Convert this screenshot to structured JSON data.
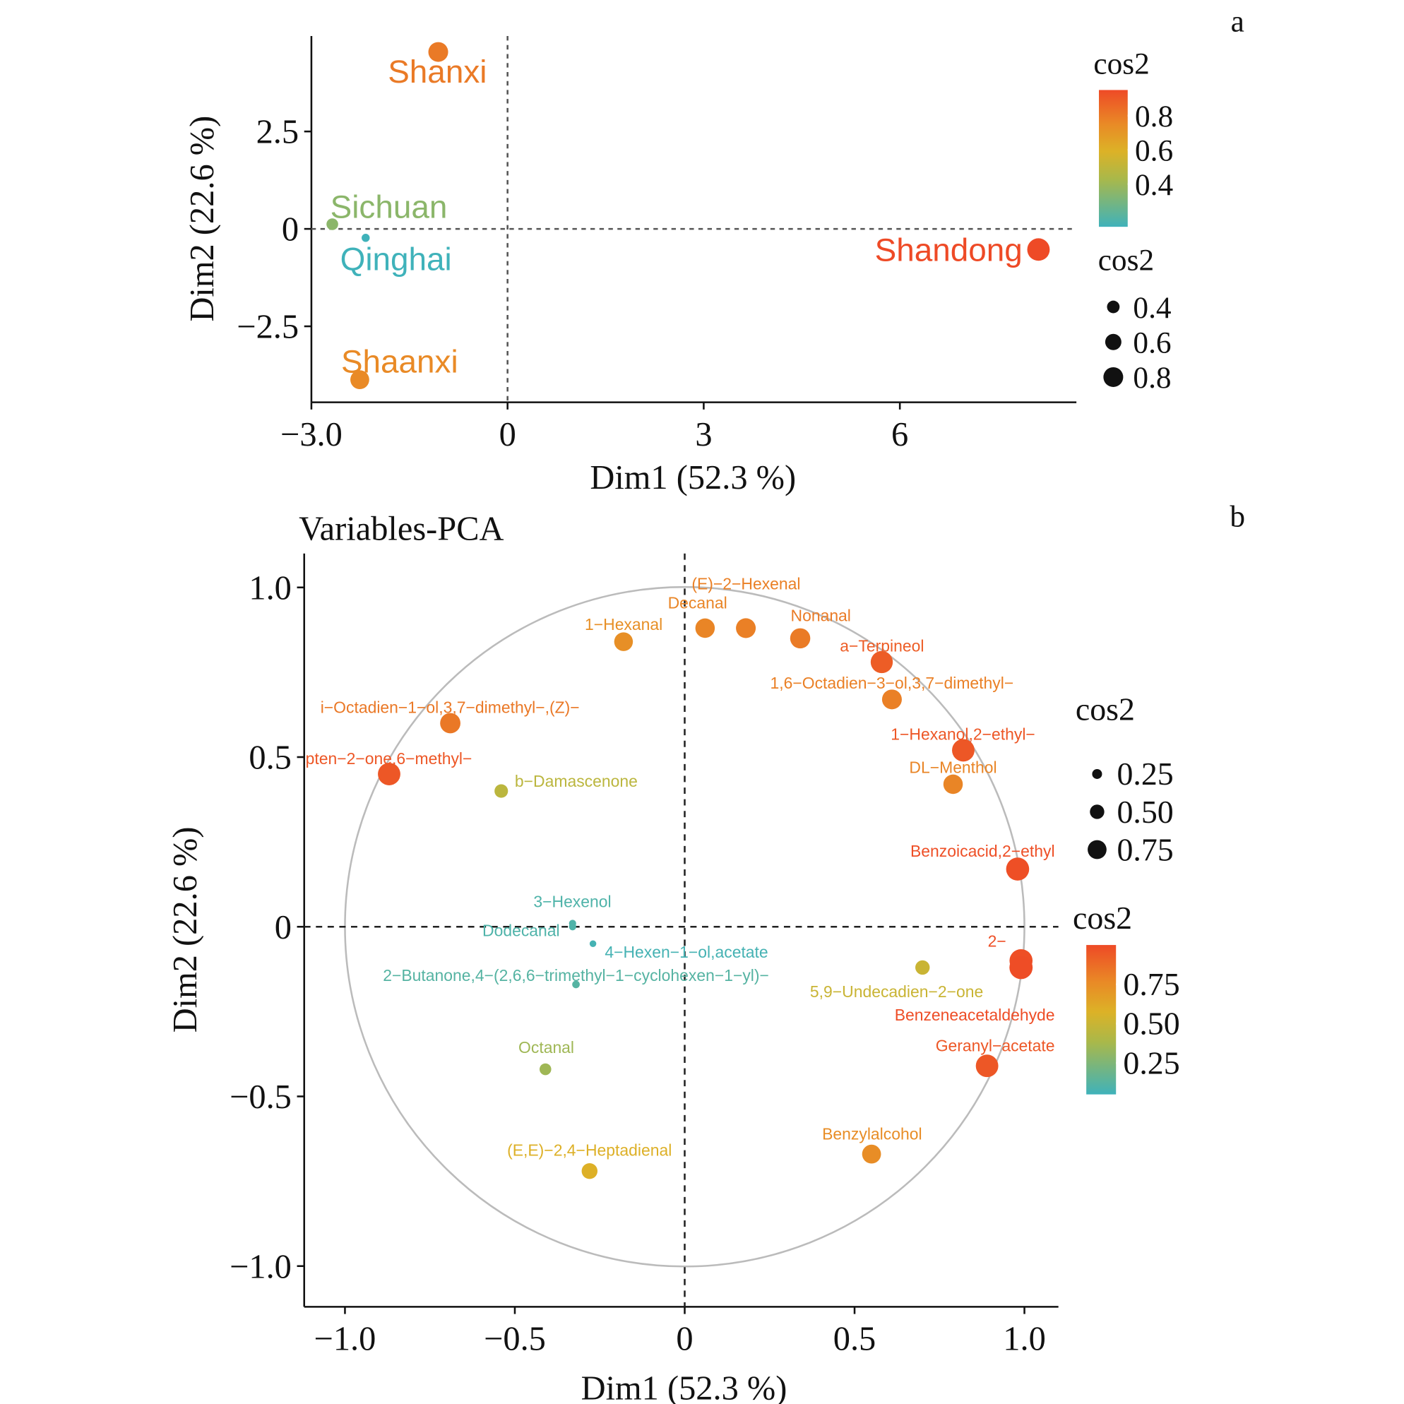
{
  "chart_data": [
    {
      "type": "scatter",
      "panel_label": "a",
      "title": "",
      "xlabel": "Dim1 (52.3 %)",
      "ylabel": "Dim2 (22.6 %)",
      "xlim": [
        -3.0,
        8.7
      ],
      "ylim": [
        -4.45,
        4.95
      ],
      "xticks": [
        -3.0,
        0,
        3,
        6
      ],
      "xtick_labels": [
        "−3.0",
        "0",
        "3",
        "6"
      ],
      "yticks": [
        -2.5,
        0,
        2.5
      ],
      "ytick_labels": [
        "−2.5",
        "0",
        "2.5"
      ],
      "grid": false,
      "reference_lines": "dashed at x=0 and y=0",
      "points": [
        {
          "label": "Shanxi",
          "x": -1.06,
          "y": 4.54,
          "cos2": 0.8
        },
        {
          "label": "Sichuan",
          "x": -2.68,
          "y": 0.12,
          "cos2": 0.35
        },
        {
          "label": "Qinghai",
          "x": -2.17,
          "y": -0.23,
          "cos2": 0.15
        },
        {
          "label": "Shaanxi",
          "x": -2.26,
          "y": -3.87,
          "cos2": 0.75
        },
        {
          "label": "Shandong",
          "x": 8.12,
          "y": -0.53,
          "cos2": 0.95
        }
      ],
      "legend_color": {
        "title": "cos2",
        "ticks": [
          "0.8",
          "0.6",
          "0.4"
        ],
        "tick_values": [
          0.8,
          0.6,
          0.4
        ],
        "range": [
          0.15,
          0.95
        ]
      },
      "legend_size": {
        "title": "cos2",
        "items": [
          "0.4",
          "0.6",
          "0.8"
        ],
        "values": [
          0.4,
          0.6,
          0.8
        ]
      },
      "legend_placement": "right"
    },
    {
      "type": "scatter",
      "panel_label": "b",
      "title": "Variables-PCA",
      "xlabel": "Dim1 (52.3 %)",
      "ylabel": "Dim2 (22.6 %)",
      "xlim": [
        -1.12,
        1.1
      ],
      "ylim": [
        -1.12,
        1.1
      ],
      "xticks": [
        -1.0,
        -0.5,
        0,
        0.5,
        1.0
      ],
      "xtick_labels": [
        "−1.0",
        "−0.5",
        "0",
        "0.5",
        "1.0"
      ],
      "yticks": [
        -1.0,
        -0.5,
        0,
        0.5,
        1.0
      ],
      "ytick_labels": [
        "−1.0",
        "−0.5",
        "0",
        "0.5",
        "1.0"
      ],
      "grid": false,
      "correlation_circle": true,
      "reference_lines": "dashed at x=0 and y=0",
      "points": [
        {
          "label": "1−Hexanal",
          "x": -0.18,
          "y": 0.84,
          "cos2": 0.74
        },
        {
          "label": "Decanal",
          "x": 0.06,
          "y": 0.88,
          "cos2": 0.78
        },
        {
          "label": "(E)−2−Hexenal",
          "x": 0.18,
          "y": 0.88,
          "cos2": 0.8
        },
        {
          "label": "Nonanal",
          "x": 0.34,
          "y": 0.85,
          "cos2": 0.82
        },
        {
          "label": "a−Terpineol",
          "x": 0.58,
          "y": 0.78,
          "cos2": 0.93
        },
        {
          "label": "1,6−Octadien−3−ol,3,7−dimethyl−",
          "x": 0.61,
          "y": 0.67,
          "cos2": 0.8
        },
        {
          "label": "i−Octadien−1−ol,3,7−dimethyl−,(Z)−",
          "x": -0.69,
          "y": 0.6,
          "cos2": 0.83
        },
        {
          "label": "pten−2−one,6−methyl−",
          "x": -0.87,
          "y": 0.45,
          "cos2": 0.95
        },
        {
          "label": "b−Damascenone",
          "x": -0.54,
          "y": 0.4,
          "cos2": 0.45
        },
        {
          "label": "1−Hexanol,2−ethyl−",
          "x": 0.82,
          "y": 0.52,
          "cos2": 0.95
        },
        {
          "label": "DL−Menthol",
          "x": 0.79,
          "y": 0.42,
          "cos2": 0.78
        },
        {
          "label": "Benzoicacid,2−ethyl",
          "x": 0.98,
          "y": 0.17,
          "cos2": 0.98
        },
        {
          "label": "3−Hexenol",
          "x": -0.33,
          "y": 0.01,
          "cos2": 0.1
        },
        {
          "label": "Dodecanal",
          "x": -0.33,
          "y": 0.0,
          "cos2": 0.1
        },
        {
          "label": "4−Hexen−1−ol,acetate",
          "x": -0.27,
          "y": -0.05,
          "cos2": 0.07
        },
        {
          "label": "2−Butanone,4−(2,6,6−trimethyl−1−cyclohexen−1−yl)−",
          "x": -0.32,
          "y": -0.17,
          "cos2": 0.12
        },
        {
          "label": "5,9−Undecadien−2−one",
          "x": 0.7,
          "y": -0.12,
          "cos2": 0.5
        },
        {
          "label": "2−",
          "x": 0.99,
          "y": -0.1,
          "cos2": 0.98
        },
        {
          "label": "Benzeneacetaldehyde",
          "x": 0.99,
          "y": -0.12,
          "cos2": 0.99
        },
        {
          "label": "Geranyl−acetate",
          "x": 0.89,
          "y": -0.41,
          "cos2": 0.95
        },
        {
          "label": "Octanal",
          "x": -0.41,
          "y": -0.42,
          "cos2": 0.35
        },
        {
          "label": "Benzylalcohol",
          "x": 0.55,
          "y": -0.67,
          "cos2": 0.75
        },
        {
          "label": "(E,E)−2,4−Heptadienal",
          "x": -0.28,
          "y": -0.72,
          "cos2": 0.58
        }
      ],
      "legend_size": {
        "title": "cos2",
        "items": [
          "0.25",
          "0.50",
          "0.75"
        ],
        "values": [
          0.25,
          0.5,
          0.75
        ]
      },
      "legend_color": {
        "title": "cos2",
        "ticks": [
          "0.75",
          "0.50",
          "0.25"
        ],
        "tick_values": [
          0.75,
          0.5,
          0.25
        ],
        "range": [
          0.05,
          1.0
        ]
      },
      "legend_placement": "right"
    }
  ],
  "colors": {
    "low": "#3fb2ba",
    "mid_low": "#a9b84a",
    "mid": "#dcb227",
    "mid_high": "#e98a26",
    "high": "#ee4a26"
  }
}
